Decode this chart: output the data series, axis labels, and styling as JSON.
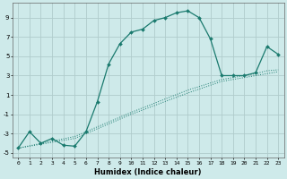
{
  "xlabel": "Humidex (Indice chaleur)",
  "ylabel": "",
  "xlim": [
    -0.5,
    23.5
  ],
  "ylim": [
    -5.5,
    10.5
  ],
  "xticks": [
    0,
    1,
    2,
    3,
    4,
    5,
    6,
    7,
    8,
    9,
    10,
    11,
    12,
    13,
    14,
    15,
    16,
    17,
    18,
    19,
    20,
    21,
    22,
    23
  ],
  "yticks": [
    -5,
    -3,
    -1,
    1,
    3,
    5,
    7,
    9
  ],
  "background_color": "#ceeaea",
  "grid_color": "#b0cccc",
  "line_color": "#1a7a6e",
  "line1_x": [
    0,
    1,
    2,
    3,
    4,
    5,
    6,
    7,
    8,
    9,
    10,
    11,
    12,
    13,
    14,
    15,
    16,
    17,
    18,
    19,
    20,
    21,
    22,
    23
  ],
  "line1_y": [
    -4.5,
    -2.8,
    -4.0,
    -3.5,
    -4.2,
    -4.3,
    -2.8,
    0.3,
    4.2,
    6.3,
    7.5,
    7.8,
    8.7,
    9.0,
    9.5,
    9.7,
    9.0,
    6.8,
    3.0,
    3.0,
    3.0,
    3.3,
    6.0,
    5.2
  ],
  "line2_x": [
    0,
    5,
    10,
    15,
    18,
    19,
    20,
    21,
    22,
    23
  ],
  "line2_y": [
    -4.5,
    -3.5,
    -1.0,
    1.2,
    2.4,
    2.6,
    2.8,
    3.0,
    3.2,
    3.4
  ],
  "line3_x": [
    0,
    5,
    10,
    15,
    18,
    19,
    20,
    21,
    22,
    23
  ],
  "line3_y": [
    -4.5,
    -3.3,
    -0.8,
    1.5,
    2.6,
    2.8,
    3.0,
    3.2,
    3.5,
    3.6
  ]
}
